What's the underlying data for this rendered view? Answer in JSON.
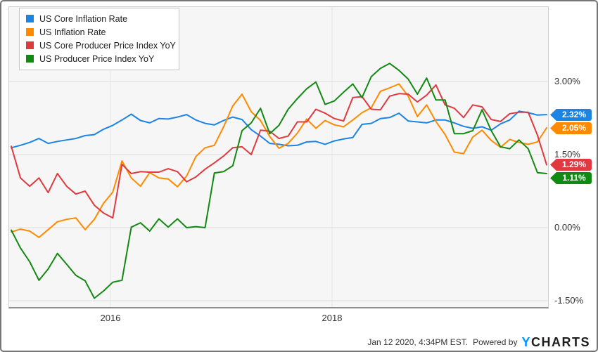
{
  "chart_data": {
    "type": "line",
    "title": "",
    "x_unit": "month",
    "x_range": [
      "2015-01",
      "2019-11"
    ],
    "x_tick_labels": [
      "2016",
      "2018"
    ],
    "y_ticks": [
      3.0,
      1.5,
      0.0,
      -1.5
    ],
    "y_tick_labels": [
      "3.00%",
      "1.50%",
      "0.00%",
      "-1.50%"
    ],
    "ylim": [
      -1.66,
      4.55
    ],
    "grid": true,
    "legend_position": "top-left",
    "series": [
      {
        "name": "US Core Inflation Rate",
        "color": "#1c84e4",
        "end_label": "2.32%",
        "values": [
          1.64,
          1.69,
          1.75,
          1.83,
          1.73,
          1.77,
          1.8,
          1.83,
          1.89,
          1.91,
          2.02,
          2.1,
          2.21,
          2.33,
          2.2,
          2.15,
          2.24,
          2.23,
          2.27,
          2.32,
          2.21,
          2.14,
          2.11,
          2.2,
          2.27,
          2.22,
          2.01,
          1.88,
          1.73,
          1.71,
          1.68,
          1.69,
          1.76,
          1.77,
          1.71,
          1.78,
          1.82,
          1.85,
          2.12,
          2.14,
          2.24,
          2.26,
          2.35,
          2.19,
          2.17,
          2.15,
          2.21,
          2.21,
          2.15,
          2.08,
          2.04,
          2.07,
          2.0,
          2.13,
          2.21,
          2.39,
          2.36,
          2.31,
          2.32
        ]
      },
      {
        "name": "US Inflation Rate",
        "color": "#ff8a00",
        "end_label": "2.05%",
        "values": [
          -0.09,
          -0.03,
          -0.07,
          -0.2,
          -0.04,
          0.12,
          0.17,
          0.2,
          -0.04,
          0.17,
          0.5,
          0.73,
          1.37,
          1.02,
          0.85,
          1.13,
          1.02,
          1.0,
          0.84,
          1.06,
          1.46,
          1.64,
          1.69,
          2.07,
          2.5,
          2.74,
          2.38,
          2.2,
          1.87,
          1.63,
          1.73,
          1.94,
          2.23,
          2.04,
          2.2,
          2.11,
          2.07,
          2.21,
          2.36,
          2.46,
          2.8,
          2.87,
          2.95,
          2.7,
          2.28,
          2.52,
          2.18,
          1.91,
          1.55,
          1.52,
          1.86,
          2.0,
          1.79,
          1.65,
          1.81,
          1.75,
          1.71,
          1.76,
          2.05
        ]
      },
      {
        "name": "US Core Producer Price Index YoY",
        "color": "#e03a3f",
        "end_label": "1.29%",
        "values": [
          1.67,
          1.02,
          0.85,
          1.02,
          0.72,
          1.11,
          0.85,
          0.69,
          0.75,
          0.46,
          0.3,
          0.2,
          1.3,
          1.11,
          1.15,
          1.14,
          1.14,
          1.21,
          1.15,
          0.94,
          1.04,
          1.2,
          1.33,
          1.47,
          1.64,
          1.66,
          1.5,
          2.0,
          1.98,
          1.83,
          1.88,
          2.17,
          2.17,
          2.43,
          2.35,
          2.24,
          2.19,
          2.67,
          2.69,
          2.43,
          2.42,
          2.7,
          2.75,
          2.74,
          2.58,
          2.72,
          2.93,
          2.52,
          2.45,
          2.26,
          2.52,
          2.48,
          2.22,
          2.18,
          2.34,
          2.37,
          2.37,
          1.9,
          1.29
        ]
      },
      {
        "name": "US Producer Price Index YoY",
        "color": "#128912",
        "end_label": "1.11%",
        "values": [
          -0.05,
          -0.42,
          -0.7,
          -1.08,
          -0.85,
          -0.53,
          -0.75,
          -0.98,
          -1.09,
          -1.45,
          -1.3,
          -1.12,
          -1.08,
          0.01,
          0.1,
          -0.07,
          0.18,
          0.01,
          0.18,
          0.0,
          0.02,
          0.0,
          1.12,
          1.15,
          1.27,
          1.99,
          2.15,
          2.45,
          1.93,
          2.1,
          2.43,
          2.65,
          2.85,
          2.99,
          2.53,
          2.6,
          2.78,
          2.95,
          2.67,
          3.1,
          3.27,
          3.37,
          3.23,
          3.05,
          2.74,
          3.07,
          2.62,
          2.62,
          1.93,
          1.93,
          1.99,
          2.42,
          1.99,
          1.66,
          1.62,
          1.8,
          1.62,
          1.13,
          1.11
        ]
      }
    ]
  },
  "footer": {
    "timestamp": "Jan 12 2020, 4:34PM EST.",
    "powered_by": "Powered by",
    "logo_first_letter": "Y",
    "logo_rest": "CHARTS",
    "logo_accent_color": "#0096ff"
  }
}
